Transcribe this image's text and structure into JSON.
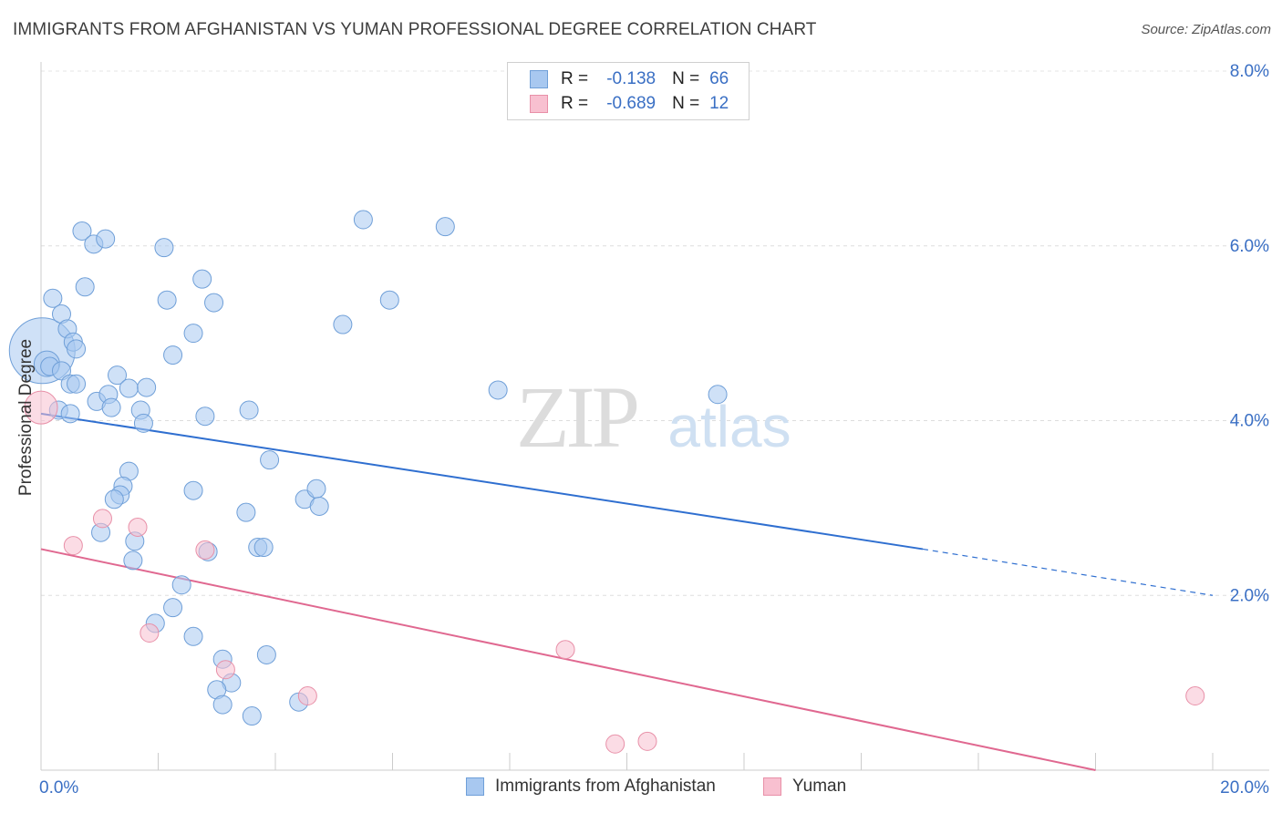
{
  "title": "IMMIGRANTS FROM AFGHANISTAN VS YUMAN PROFESSIONAL DEGREE CORRELATION CHART",
  "source": "Source: ZipAtlas.com",
  "watermark": {
    "zip": "ZIP",
    "atlas": "atlas"
  },
  "legend": {
    "r_label": "R =",
    "n_label": "N =",
    "rows": [
      {
        "r": "-0.138",
        "n": "66",
        "color": "#a8c8f0",
        "border": "#6f9fd8"
      },
      {
        "r": "-0.689",
        "n": "12",
        "color": "#f8c0d0",
        "border": "#e890a8"
      }
    ]
  },
  "chart_data": {
    "type": "scatter",
    "title": "IMMIGRANTS FROM AFGHANISTAN VS YUMAN PROFESSIONAL DEGREE CORRELATION CHART",
    "xlabel": "",
    "ylabel": "Professional Degree",
    "xlim": [
      0,
      20
    ],
    "ylim": [
      0,
      8
    ],
    "x_tick_labels": [
      {
        "value": 0,
        "label": "0.0%"
      },
      {
        "value": 20,
        "label": "20.0%"
      }
    ],
    "y_tick_labels": [
      {
        "value": 2,
        "label": "2.0%"
      },
      {
        "value": 4,
        "label": "4.0%"
      },
      {
        "value": 6,
        "label": "6.0%"
      },
      {
        "value": 8,
        "label": "8.0%"
      }
    ],
    "grid": true,
    "series": [
      {
        "name": "Immigrants from Afghanistan",
        "color": "#a8c8f0",
        "stroke": "#6f9fd8",
        "points": [
          [
            0.02,
            4.8
          ],
          [
            0.1,
            4.65
          ],
          [
            0.15,
            4.62
          ],
          [
            0.35,
            4.57
          ],
          [
            0.2,
            5.4
          ],
          [
            0.35,
            5.22
          ],
          [
            0.45,
            5.05
          ],
          [
            0.55,
            4.9
          ],
          [
            0.6,
            4.82
          ],
          [
            0.5,
            4.42
          ],
          [
            0.6,
            4.42
          ],
          [
            0.3,
            4.12
          ],
          [
            0.5,
            4.08
          ],
          [
            0.7,
            6.17
          ],
          [
            0.9,
            6.02
          ],
          [
            1.1,
            6.08
          ],
          [
            0.75,
            5.53
          ],
          [
            0.95,
            4.22
          ],
          [
            1.15,
            4.3
          ],
          [
            1.2,
            4.15
          ],
          [
            1.3,
            4.52
          ],
          [
            1.5,
            4.37
          ],
          [
            1.7,
            4.12
          ],
          [
            1.75,
            3.97
          ],
          [
            1.8,
            4.38
          ],
          [
            1.5,
            3.42
          ],
          [
            1.4,
            3.25
          ],
          [
            1.35,
            3.15
          ],
          [
            1.25,
            3.1
          ],
          [
            1.02,
            2.72
          ],
          [
            1.6,
            2.62
          ],
          [
            1.57,
            2.4
          ],
          [
            2.1,
            5.98
          ],
          [
            2.15,
            5.38
          ],
          [
            2.25,
            4.75
          ],
          [
            2.6,
            5.0
          ],
          [
            2.75,
            5.62
          ],
          [
            2.95,
            5.35
          ],
          [
            2.4,
            2.12
          ],
          [
            2.25,
            1.86
          ],
          [
            1.95,
            1.68
          ],
          [
            2.6,
            3.2
          ],
          [
            2.8,
            4.05
          ],
          [
            2.85,
            2.5
          ],
          [
            2.6,
            1.53
          ],
          [
            3.1,
            1.27
          ],
          [
            3.25,
            1.0
          ],
          [
            3.0,
            0.92
          ],
          [
            3.1,
            0.75
          ],
          [
            3.5,
            2.95
          ],
          [
            3.55,
            4.12
          ],
          [
            3.7,
            2.55
          ],
          [
            3.8,
            2.55
          ],
          [
            3.9,
            3.55
          ],
          [
            3.85,
            1.32
          ],
          [
            3.6,
            0.62
          ],
          [
            4.4,
            0.78
          ],
          [
            4.5,
            3.1
          ],
          [
            4.7,
            3.22
          ],
          [
            4.75,
            3.02
          ],
          [
            5.15,
            5.1
          ],
          [
            5.5,
            6.3
          ],
          [
            5.95,
            5.38
          ],
          [
            6.9,
            6.22
          ],
          [
            7.8,
            4.35
          ],
          [
            11.55,
            4.3
          ]
        ],
        "sizes": [
          36,
          14,
          10,
          10,
          10,
          10,
          10,
          10,
          10,
          10,
          10,
          10,
          10,
          10,
          10,
          10,
          10,
          10,
          10,
          10,
          10,
          10,
          10,
          10,
          10,
          10,
          10,
          10,
          10,
          10,
          10,
          10,
          10,
          10,
          10,
          10,
          10,
          10,
          10,
          10,
          10,
          10,
          10,
          10,
          10,
          10,
          10,
          10,
          10,
          10,
          10,
          10,
          10,
          10,
          10,
          10,
          10,
          10,
          10,
          10,
          10,
          10,
          10,
          10,
          10,
          10
        ],
        "trend": {
          "x0": 0,
          "y0": 4.08,
          "x1": 15.05,
          "y1": 2.53,
          "dash_to_x": 20,
          "dash_to_y": 2.0
        }
      },
      {
        "name": "Yuman",
        "color": "#f8c0d0",
        "stroke": "#e890a8",
        "points": [
          [
            0.0,
            4.15
          ],
          [
            0.55,
            2.57
          ],
          [
            1.05,
            2.88
          ],
          [
            1.65,
            2.78
          ],
          [
            1.85,
            1.57
          ],
          [
            2.8,
            2.52
          ],
          [
            3.15,
            1.15
          ],
          [
            4.55,
            0.85
          ],
          [
            8.95,
            1.38
          ],
          [
            9.8,
            0.3
          ],
          [
            10.35,
            0.33
          ],
          [
            19.7,
            0.85
          ]
        ],
        "sizes": [
          18,
          10,
          10,
          10,
          10,
          10,
          10,
          10,
          10,
          10,
          10,
          10
        ],
        "trend": {
          "x0": 0,
          "y0": 2.53,
          "x1": 18.0,
          "y1": 0.0
        }
      }
    ]
  }
}
